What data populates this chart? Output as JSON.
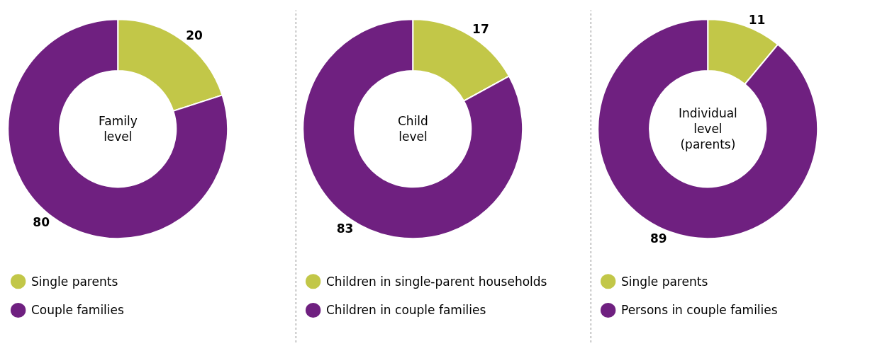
{
  "chart_data": [
    {
      "type": "donut",
      "title": "Family level",
      "categories": [
        "Single parents",
        "Couple families"
      ],
      "values": [
        20,
        80
      ],
      "colors": [
        "#c2c748",
        "#6f2080"
      ],
      "data_labels": true,
      "legend": "bottom"
    },
    {
      "type": "donut",
      "title": "Child level",
      "categories": [
        "Children in single-parent households",
        "Children in couple families"
      ],
      "values": [
        17,
        83
      ],
      "colors": [
        "#c2c748",
        "#6f2080"
      ],
      "data_labels": true,
      "legend": "bottom"
    },
    {
      "type": "donut",
      "title": "Individual level (parents)",
      "categories": [
        "Single parents",
        "Persons in couple families"
      ],
      "values": [
        11,
        89
      ],
      "colors": [
        "#c2c748",
        "#6f2080"
      ],
      "data_labels": true,
      "legend": "bottom"
    }
  ]
}
